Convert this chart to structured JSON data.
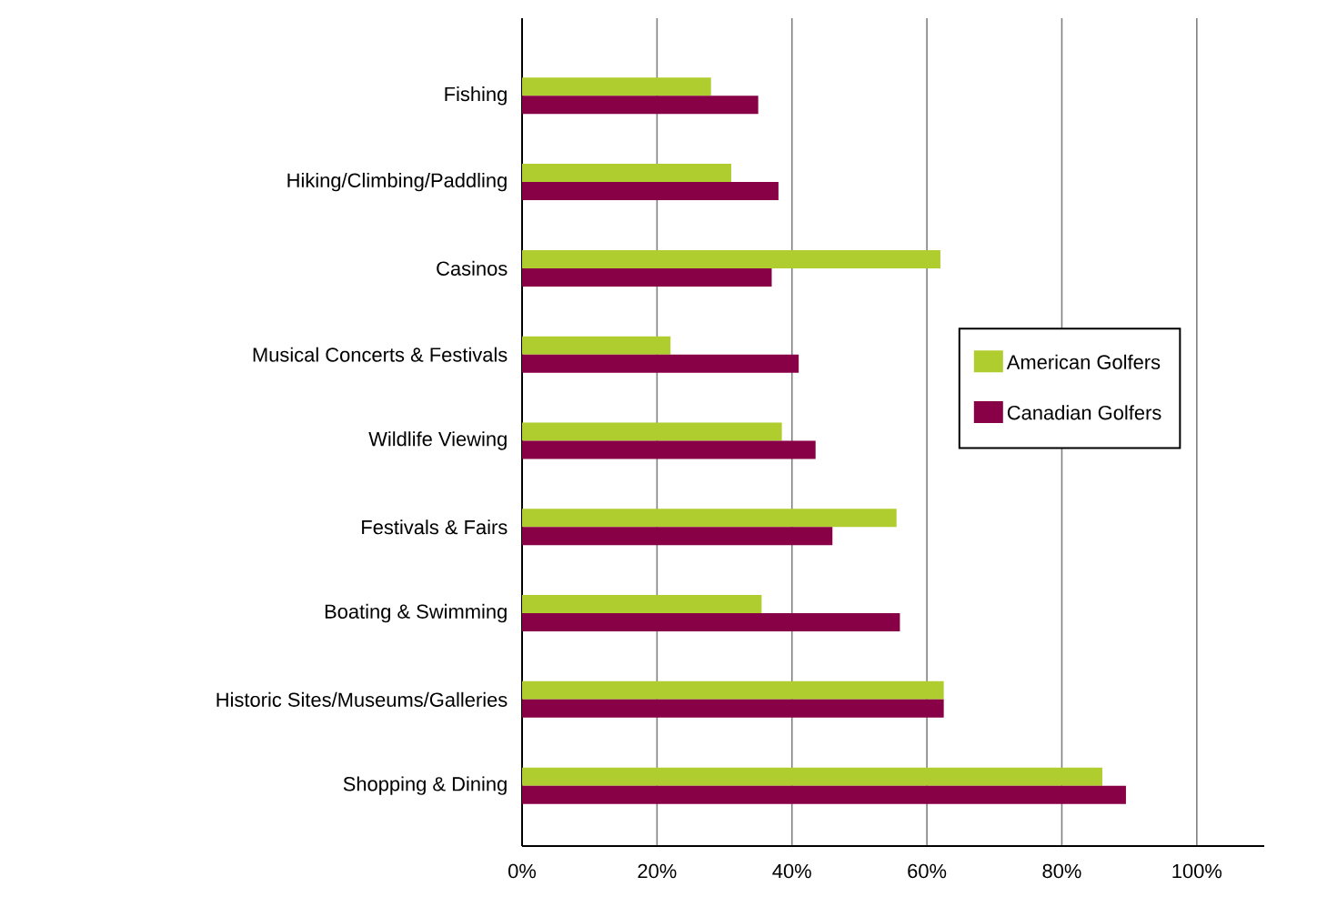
{
  "chart_data": {
    "type": "bar",
    "orientation": "horizontal",
    "categories": [
      "Fishing",
      "Hiking/Climbing/Paddling",
      "Casinos",
      "Musical Concerts & Festivals",
      "Wildlife Viewing",
      "Festivals & Fairs",
      "Boating & Swimming",
      "Historic Sites/Museums/Galleries",
      "Shopping & Dining"
    ],
    "series": [
      {
        "name": "American Golfers",
        "color": "#afcd2e",
        "values": [
          28,
          31,
          62,
          22,
          38.5,
          55.5,
          35.5,
          62.5,
          86
        ]
      },
      {
        "name": "Canadian Golfers",
        "color": "#880046",
        "values": [
          35,
          38,
          37,
          41,
          43.5,
          46,
          56,
          62.5,
          89.5
        ]
      }
    ],
    "xlim": [
      0,
      110
    ],
    "xticks": [
      {
        "value": 0,
        "label": "0%"
      },
      {
        "value": 20,
        "label": "20%"
      },
      {
        "value": 40,
        "label": "40%"
      },
      {
        "value": 60,
        "label": "60%"
      },
      {
        "value": 80,
        "label": "80%"
      },
      {
        "value": 100,
        "label": "100%"
      }
    ],
    "grid": "x",
    "legend": "right"
  }
}
